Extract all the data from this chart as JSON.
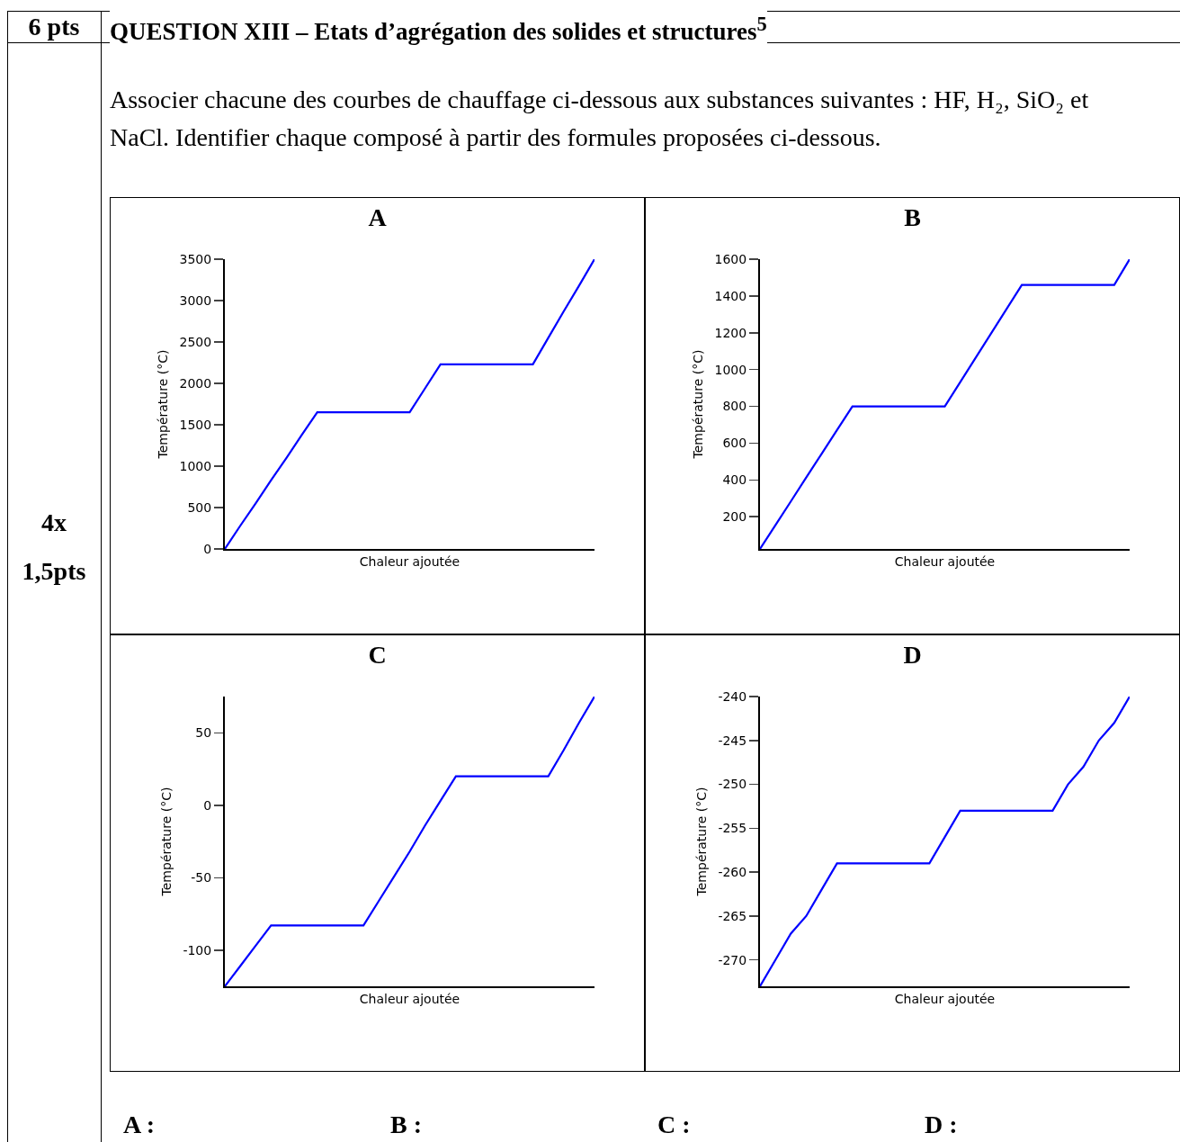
{
  "chart_data": [
    {
      "type": "other",
      "title": "QUESTION XIII – Etats d’agrégation des solides et structures$^{5}$",
      "annotations": [
        "6 pts",
        "Associer chacune des courbes de chauffage ci-dessous aux substances suivantes : HF, H₂, SiO₂ et NaCl. Identifier chaque composé à partir des formules proposées ci-dessous.",
        "4x",
        "1,5pts"
      ]
    },
    {
      "type": "line",
      "title": "A",
      "xlabel": "Chaleur ajoutée",
      "ylabel": "Température (°C)",
      "tick_labels": "y",
      "categories": [
        null,
        null,
        null,
        null,
        null,
        null,
        null,
        null,
        null,
        null,
        null,
        null,
        null,
        null,
        null,
        null,
        null,
        null,
        null,
        null,
        null,
        null,
        null,
        null,
        null
      ],
      "series": [
        {
          "color": "#0000ff",
          "values": [
            0,
            280,
            550,
            830,
            1100,
            1380,
            1650,
            1650,
            1650,
            1650,
            1650,
            1650,
            1650,
            1940,
            2230,
            2230,
            2230,
            2230,
            2230,
            2230,
            2230,
            2550,
            2870,
            3180,
            3500
          ]
        }
      ],
      "ylim": [
        0,
        3500
      ],
      "yticks": [
        0,
        500,
        1000,
        1500,
        2000,
        2500,
        3000,
        3500
      ]
    },
    {
      "type": "line",
      "title": "B",
      "xlabel": "Chaleur ajoutée",
      "ylabel": "Température (°C)",
      "tick_labels": "y",
      "categories": [
        null,
        null,
        null,
        null,
        null,
        null,
        null,
        null,
        null,
        null,
        null,
        null,
        null,
        null,
        null,
        null,
        null,
        null,
        null,
        null,
        null,
        null,
        null,
        null,
        null
      ],
      "series": [
        {
          "color": "#0000ff",
          "values": [
            25,
            154,
            283,
            413,
            542,
            671,
            800,
            800,
            800,
            800,
            800,
            800,
            800,
            932,
            1064,
            1196,
            1328,
            1460,
            1460,
            1460,
            1460,
            1460,
            1460,
            1460,
            1600
          ]
        }
      ],
      "ylim": [
        25,
        1600
      ],
      "yticks": [
        200,
        400,
        600,
        800,
        1000,
        1200,
        1400,
        1600
      ]
    },
    {
      "type": "line",
      "title": "C",
      "xlabel": "Chaleur ajoutée",
      "ylabel": "Température (°C)",
      "tick_labels": "y",
      "categories": [
        null,
        null,
        null,
        null,
        null,
        null,
        null,
        null,
        null,
        null,
        null,
        null,
        null,
        null,
        null,
        null,
        null,
        null,
        null,
        null,
        null,
        null,
        null,
        null,
        null
      ],
      "series": [
        {
          "color": "#0000ff",
          "values": [
            -125,
            -111,
            -97,
            -83,
            -83,
            -83,
            -83,
            -83,
            -83,
            -83,
            -66,
            -49,
            -32,
            -14,
            3,
            20,
            20,
            20,
            20,
            20,
            20,
            20,
            38,
            57,
            75
          ]
        }
      ],
      "ylim": [
        -125,
        75
      ],
      "yticks": [
        -100,
        -50,
        0,
        50
      ]
    },
    {
      "type": "line",
      "title": "D",
      "xlabel": "Chaleur ajoutée",
      "ylabel": "Température (°C)",
      "tick_labels": "y",
      "categories": [
        null,
        null,
        null,
        null,
        null,
        null,
        null,
        null,
        null,
        null,
        null,
        null,
        null,
        null,
        null,
        null,
        null,
        null,
        null,
        null,
        null,
        null,
        null,
        null,
        null
      ],
      "series": [
        {
          "color": "#0000ff",
          "values": [
            -273,
            -270,
            -267,
            -265,
            -262,
            -259,
            -259,
            -259,
            -259,
            -259,
            -259,
            -259,
            -256,
            -253,
            -253,
            -253,
            -253,
            -253,
            -253,
            -253,
            -250,
            -248,
            -245,
            -243,
            -240
          ]
        }
      ],
      "ylim": [
        -273,
        -240
      ],
      "yticks": [
        -270,
        -265,
        -260,
        -255,
        -250,
        -245,
        -240
      ]
    },
    {
      "type": "other",
      "annotations": [
        "A :",
        "B :",
        "C :",
        "D :"
      ]
    }
  ]
}
